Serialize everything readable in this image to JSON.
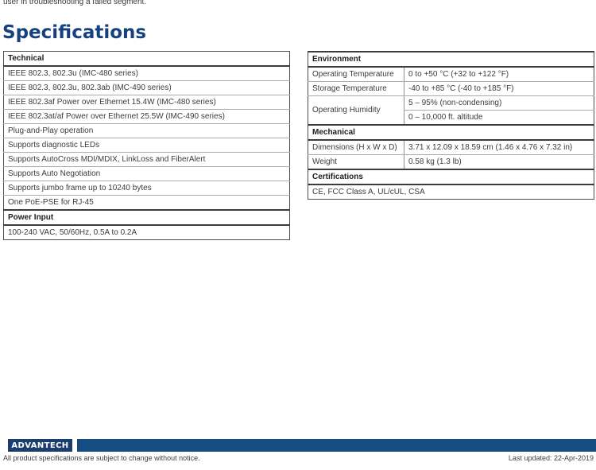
{
  "page": {
    "intro_text": "user in troubleshooting a failed segment.",
    "heading": "Specifications"
  },
  "spec_tables": {
    "left": {
      "sections": [
        {
          "header": "Technical",
          "rows": [
            "IEEE 802.3, 802.3u (IMC-480 series)",
            "IEEE 802.3, 802.3u, 802.3ab (IMC-490 series)",
            "IEEE 802.3af Power over Ethernet 15.4W (IMC-480 series)",
            "IEEE 802.3at/af Power over Ethernet 25.5W (IMC-490 series)",
            "Plug-and-Play operation",
            "Supports diagnostic LEDs",
            "Supports AutoCross MDI/MDIX, LinkLoss and FiberAlert",
            "Supports Auto Negotiation",
            "Supports jumbo frame up to 10240 bytes",
            "One PoE-PSE for RJ-45"
          ]
        },
        {
          "header": "Power Input",
          "rows": [
            "100-240 VAC, 50/60Hz, 0.5A to 0.2A"
          ]
        }
      ]
    },
    "right": {
      "label_col_width": 121,
      "sections": [
        {
          "header": "Environment",
          "rows": [
            {
              "label": "Operating Temperature",
              "value": "0 to +50 °C (+32 to +122 °F)"
            },
            {
              "label": "Storage Temperature",
              "value": "-40 to +85 °C (-40 to +185 °F)"
            },
            {
              "label": "Operating Humidity",
              "value": "5 – 95% (non-condensing)",
              "labelRowspan": 2
            },
            {
              "label": null,
              "value": "0 – 10,000 ft. altitude"
            }
          ]
        },
        {
          "header": "Mechanical",
          "rows": [
            {
              "label": "Dimensions (H x W x D)",
              "value": "3.71 x 12.09 x 18.59 cm (1.46 x 4.76 x 7.32 in)"
            },
            {
              "label": "Weight",
              "value": "0.58 kg (1.3 lb)"
            }
          ]
        },
        {
          "header": "Certifications",
          "rows": [
            "CE, FCC Class A, UL/cUL, CSA"
          ]
        }
      ]
    }
  },
  "footer": {
    "logo_text": "ADVANTECH",
    "disclaimer": "All product specifications are subject to change without notice.",
    "last_updated": "Last updated: 22-Apr-2019"
  },
  "colors": {
    "heading": "#17417E",
    "logo_box": "#1C3E6E",
    "footer_bar": "#174C83"
  }
}
